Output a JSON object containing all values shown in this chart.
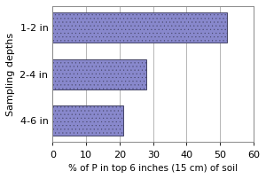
{
  "categories": [
    "4-6 in",
    "2-4 in",
    "1-2 in"
  ],
  "values": [
    21,
    28,
    52
  ],
  "bar_color": "#8888cc",
  "bar_edgecolor": "#444466",
  "ylabel": "Sampling depths",
  "xlabel": "% of P in top 6 inches (15 cm) of soil",
  "xlim": [
    0,
    60
  ],
  "xticks": [
    0,
    10,
    20,
    30,
    40,
    50,
    60
  ],
  "background_color": "#ffffff",
  "figure_color": "#ffffff",
  "grid_color": "#aaaaaa",
  "bar_linewidth": 0.7,
  "ylabel_fontsize": 8,
  "xlabel_fontsize": 7.5,
  "tick_fontsize": 8
}
